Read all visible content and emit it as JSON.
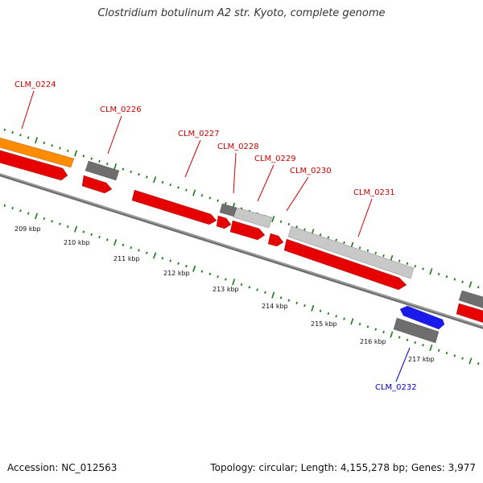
{
  "title": "Clostridium botulinum A2 str. Kyoto, complete genome",
  "footer": {
    "accession": "Accession: NC_012563",
    "summary": "Topology: circular; Length: 4,155,278 bp; Genes: 3,977"
  },
  "colors": {
    "cds_forward": "#e60000",
    "cds_reverse": "#1a1aee",
    "gene_gray": "#6e6e6e",
    "gene_light": "#c8c8c8",
    "gene_orange": "#ff8c00",
    "backbone": "#808080",
    "ticks": "#1a7a1a",
    "label_forward": "#cc0000",
    "label_reverse": "#0000cc"
  },
  "axis": {
    "ticks": [
      {
        "label": "209 kbp"
      },
      {
        "label": "210 kbp"
      },
      {
        "label": "211 kbp"
      },
      {
        "label": "212 kbp"
      },
      {
        "label": "213 kbp"
      },
      {
        "label": "214 kbp"
      },
      {
        "label": "215 kbp"
      },
      {
        "label": "216 kbp"
      },
      {
        "label": "217 kbp"
      }
    ]
  },
  "gene_labels": [
    {
      "name": "CLM_0224",
      "strand": "forward"
    },
    {
      "name": "CLM_0226",
      "strand": "forward"
    },
    {
      "name": "CLM_0227",
      "strand": "forward"
    },
    {
      "name": "CLM_0228",
      "strand": "forward"
    },
    {
      "name": "CLM_0229",
      "strand": "forward"
    },
    {
      "name": "CLM_0230",
      "strand": "forward"
    },
    {
      "name": "CLM_0231",
      "strand": "forward"
    },
    {
      "name": "CLM_0232",
      "strand": "reverse"
    }
  ]
}
